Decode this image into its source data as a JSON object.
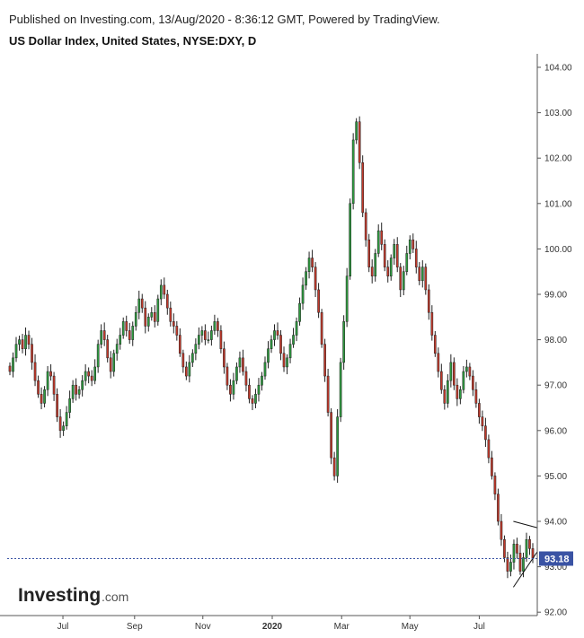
{
  "header": {
    "published": "Published on Investing.com, 13/Aug/2020 - 8:36:12 GMT, Powered by TradingView.",
    "title": "US Dollar Index, United States, NYSE:DXY, D"
  },
  "logo": {
    "brand": "Investing",
    "suffix": ".com"
  },
  "colors": {
    "up": "#2e9a3f",
    "down": "#c0392b",
    "wick": "#222222",
    "price_line": "#3a53a4",
    "price_badge": "#3a53a4",
    "axis": "#555555"
  },
  "chart_data": {
    "type": "candlestick",
    "yaxis": {
      "ticks": [
        "104.00",
        "103.00",
        "102.00",
        "101.00",
        "100.00",
        "99.00",
        "98.00",
        "97.00",
        "96.00",
        "95.00",
        "94.00",
        "93.00",
        "92.00"
      ],
      "ylim": [
        92.0,
        104.2
      ]
    },
    "xaxis": {
      "ticks": [
        {
          "label": "Jul",
          "date": "2019-07-01"
        },
        {
          "label": "Sep",
          "date": "2019-09-02"
        },
        {
          "label": "Nov",
          "date": "2019-11-01"
        },
        {
          "label": "2020",
          "date": "2020-01-01"
        },
        {
          "label": "Mar",
          "date": "2020-03-02"
        },
        {
          "label": "May",
          "date": "2020-05-01"
        },
        {
          "label": "Jul",
          "date": "2020-07-01"
        }
      ],
      "range": [
        "2019-05-13",
        "2020-08-21"
      ]
    },
    "last_price": "93.18",
    "trend_lines": [
      {
        "name": "upper-triangle-line",
        "from": [
          "2020-07-31",
          94.0
        ],
        "to": [
          "2020-08-21",
          93.86
        ]
      },
      {
        "name": "lower-triangle-line",
        "from": [
          "2020-07-31",
          92.55
        ],
        "to": [
          "2020-08-21",
          93.33
        ]
      }
    ],
    "closes": [
      97.3,
      97.6,
      97.9,
      98.0,
      97.8,
      98.1,
      97.9,
      97.5,
      97.1,
      96.8,
      96.6,
      96.9,
      97.3,
      97.2,
      96.8,
      96.3,
      96.0,
      96.1,
      96.4,
      96.7,
      97.0,
      96.8,
      96.9,
      97.1,
      97.3,
      97.2,
      97.1,
      97.4,
      97.9,
      98.2,
      98.0,
      97.6,
      97.3,
      97.7,
      97.9,
      98.1,
      98.4,
      98.2,
      98.0,
      98.3,
      98.6,
      98.9,
      98.7,
      98.3,
      98.5,
      98.6,
      98.4,
      98.9,
      99.2,
      99.0,
      98.7,
      98.4,
      98.3,
      98.1,
      97.7,
      97.4,
      97.2,
      97.5,
      97.7,
      97.9,
      98.1,
      98.2,
      98.0,
      98.0,
      98.2,
      98.4,
      98.2,
      97.8,
      97.4,
      97.0,
      96.8,
      97.1,
      97.4,
      97.6,
      97.3,
      97.0,
      96.7,
      96.6,
      96.8,
      97.0,
      97.2,
      97.5,
      97.8,
      98.0,
      98.2,
      98.1,
      97.7,
      97.4,
      97.6,
      97.9,
      98.1,
      98.4,
      98.8,
      99.2,
      99.5,
      99.8,
      99.6,
      99.1,
      98.6,
      97.9,
      97.2,
      96.4,
      95.4,
      95.0,
      96.3,
      97.5,
      98.4,
      99.4,
      101.0,
      102.4,
      102.8,
      101.9,
      100.8,
      100.2,
      99.6,
      99.4,
      99.9,
      100.4,
      100.1,
      99.6,
      99.4,
      99.8,
      100.1,
      99.6,
      99.1,
      99.5,
      99.9,
      100.2,
      100.0,
      99.6,
      99.3,
      99.6,
      99.1,
      98.6,
      98.1,
      97.7,
      97.3,
      96.9,
      96.6,
      97.1,
      97.5,
      97.0,
      96.7,
      96.9,
      97.3,
      97.4,
      97.2,
      96.9,
      96.6,
      96.3,
      96.1,
      95.8,
      95.4,
      95.0,
      94.6,
      94.0,
      93.6,
      93.2,
      92.9,
      93.1,
      93.5,
      93.3,
      92.9,
      93.2,
      93.6,
      93.4,
      93.18
    ]
  }
}
